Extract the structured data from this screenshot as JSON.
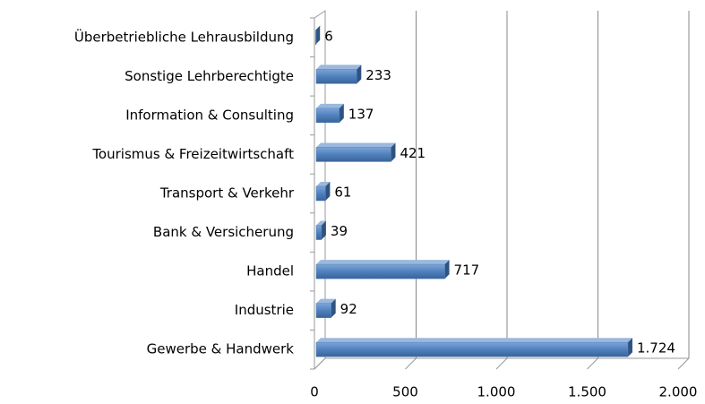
{
  "chart_data": {
    "type": "bar",
    "orientation": "horizontal",
    "categories": [
      "Überbetriebliche Lehrausbildung",
      "Sonstige Lehrberechtigte",
      "Information & Consulting",
      "Tourismus & Freizeitwirtschaft",
      "Transport & Verkehr",
      "Bank & Versicherung",
      "Handel",
      "Industrie",
      "Gewerbe & Handwerk"
    ],
    "values": [
      6,
      233,
      137,
      421,
      61,
      39,
      717,
      92,
      1724
    ],
    "value_labels": [
      "6",
      "233",
      "137",
      "421",
      "61",
      "39",
      "717",
      "92",
      "1.724"
    ],
    "color": "#4f81bd",
    "xlim": [
      0,
      2000
    ],
    "xticks": [
      0,
      500,
      {
        "value": 1000,
        "label": "1.000"
      },
      {
        "value": 1500,
        "label": "1.500"
      },
      {
        "value": 2000,
        "label": "2.000"
      }
    ],
    "grid": true
  }
}
